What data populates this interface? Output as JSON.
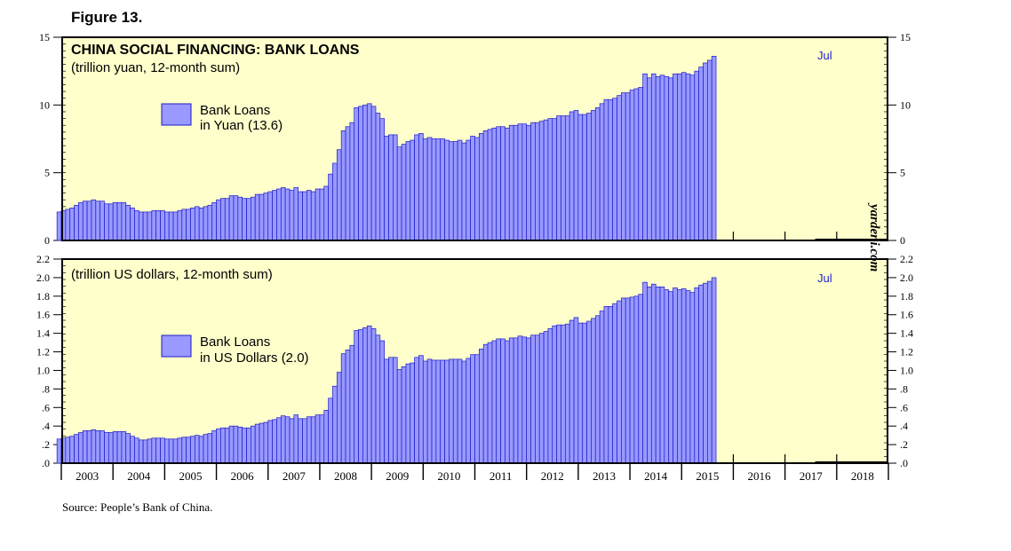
{
  "figure_label": "Figure 13.",
  "source": "Source: People’s Bank of China.",
  "watermark": "yardeni.com",
  "colors": {
    "plot_bg": "#ffffcc",
    "bar_fill": "#9999ff",
    "bar_stroke": "#1a1acc",
    "label_accent": "#2222cc"
  },
  "x_axis": {
    "labels": [
      "2003",
      "2004",
      "2005",
      "2006",
      "2007",
      "2008",
      "2009",
      "2010",
      "2011",
      "2012",
      "2013",
      "2014",
      "2015",
      "2016",
      "2017",
      "2018"
    ]
  },
  "chart_data": [
    {
      "type": "bar",
      "title": "CHINA SOCIAL FINANCING: BANK LOANS",
      "subtitle": "(trillion yuan, 12-month sum)",
      "legend": [
        "Bank Loans",
        "in Yuan (13.6)"
      ],
      "end_label": "Jul",
      "ylim": [
        0,
        15
      ],
      "yticks": [
        0,
        5,
        10,
        15
      ],
      "ytick_labels": [
        "0",
        "5",
        "10",
        "15"
      ],
      "x_start": "2002-12",
      "x_end": "2017-07",
      "series": [
        {
          "values": [
            2.1,
            2.2,
            2.3,
            2.4,
            2.6,
            2.8,
            2.9,
            2.9,
            3.0,
            2.9,
            2.9,
            2.7,
            2.7,
            2.8,
            2.8,
            2.8,
            2.6,
            2.4,
            2.2,
            2.1,
            2.1,
            2.1,
            2.2,
            2.2,
            2.2,
            2.1,
            2.1,
            2.1,
            2.2,
            2.3,
            2.3,
            2.4,
            2.5,
            2.4,
            2.5,
            2.6,
            2.8,
            3.0,
            3.1,
            3.1,
            3.3,
            3.3,
            3.2,
            3.1,
            3.1,
            3.2,
            3.4,
            3.4,
            3.5,
            3.6,
            3.7,
            3.8,
            3.9,
            3.8,
            3.7,
            3.9,
            3.6,
            3.6,
            3.7,
            3.6,
            3.8,
            3.8,
            4.0,
            4.9,
            5.7,
            6.7,
            8.1,
            8.4,
            8.7,
            9.8,
            9.9,
            10.0,
            10.1,
            9.9,
            9.4,
            9.0,
            7.7,
            7.8,
            7.8,
            6.9,
            7.1,
            7.3,
            7.4,
            7.8,
            7.9,
            7.5,
            7.6,
            7.5,
            7.5,
            7.5,
            7.4,
            7.3,
            7.3,
            7.4,
            7.2,
            7.4,
            7.7,
            7.6,
            7.9,
            8.1,
            8.2,
            8.3,
            8.4,
            8.4,
            8.3,
            8.5,
            8.5,
            8.6,
            8.6,
            8.5,
            8.7,
            8.7,
            8.8,
            8.9,
            9.0,
            9.0,
            9.2,
            9.2,
            9.2,
            9.5,
            9.6,
            9.3,
            9.3,
            9.4,
            9.6,
            9.8,
            10.1,
            10.4,
            10.4,
            10.5,
            10.7,
            10.9,
            10.9,
            11.1,
            11.2,
            11.3,
            12.3,
            12.0,
            12.3,
            12.1,
            12.2,
            12.1,
            12.0,
            12.3,
            12.3,
            12.4,
            12.3,
            12.2,
            12.5,
            12.8,
            13.1,
            13.3,
            13.6
          ]
        }
      ]
    },
    {
      "type": "bar",
      "title": "",
      "subtitle": "(trillion US dollars, 12-month sum)",
      "legend": [
        "Bank Loans",
        "in US Dollars (2.0)"
      ],
      "end_label": "Jul",
      "ylim": [
        0,
        2.2
      ],
      "yticks": [
        0,
        0.2,
        0.4,
        0.6,
        0.8,
        1.0,
        1.2,
        1.4,
        1.6,
        1.8,
        2.0,
        2.2
      ],
      "ytick_labels": [
        ".0",
        ".2",
        ".4",
        ".6",
        ".8",
        "1.0",
        "1.2",
        "1.4",
        "1.6",
        "1.8",
        "2.0",
        "2.2"
      ],
      "x_start": "2002-12",
      "x_end": "2017-07",
      "series": [
        {
          "values": [
            0.26,
            0.27,
            0.28,
            0.29,
            0.31,
            0.33,
            0.35,
            0.35,
            0.36,
            0.35,
            0.35,
            0.33,
            0.33,
            0.34,
            0.34,
            0.34,
            0.32,
            0.29,
            0.27,
            0.25,
            0.25,
            0.26,
            0.27,
            0.27,
            0.27,
            0.26,
            0.26,
            0.26,
            0.27,
            0.28,
            0.28,
            0.29,
            0.3,
            0.29,
            0.31,
            0.32,
            0.35,
            0.37,
            0.38,
            0.38,
            0.4,
            0.4,
            0.39,
            0.38,
            0.38,
            0.4,
            0.42,
            0.43,
            0.44,
            0.46,
            0.47,
            0.49,
            0.51,
            0.5,
            0.48,
            0.52,
            0.48,
            0.48,
            0.5,
            0.5,
            0.52,
            0.52,
            0.57,
            0.7,
            0.83,
            0.98,
            1.18,
            1.22,
            1.27,
            1.43,
            1.44,
            1.46,
            1.48,
            1.45,
            1.38,
            1.32,
            1.12,
            1.14,
            1.14,
            1.01,
            1.04,
            1.07,
            1.08,
            1.14,
            1.16,
            1.1,
            1.12,
            1.11,
            1.11,
            1.11,
            1.11,
            1.12,
            1.12,
            1.12,
            1.1,
            1.13,
            1.17,
            1.17,
            1.23,
            1.28,
            1.3,
            1.32,
            1.34,
            1.34,
            1.32,
            1.35,
            1.35,
            1.37,
            1.36,
            1.35,
            1.38,
            1.38,
            1.4,
            1.42,
            1.45,
            1.48,
            1.49,
            1.49,
            1.5,
            1.54,
            1.57,
            1.51,
            1.51,
            1.53,
            1.56,
            1.59,
            1.64,
            1.69,
            1.69,
            1.72,
            1.75,
            1.78,
            1.78,
            1.79,
            1.8,
            1.82,
            1.95,
            1.9,
            1.93,
            1.9,
            1.9,
            1.87,
            1.85,
            1.89,
            1.87,
            1.88,
            1.86,
            1.84,
            1.89,
            1.92,
            1.94,
            1.96,
            2.0
          ]
        }
      ]
    }
  ]
}
